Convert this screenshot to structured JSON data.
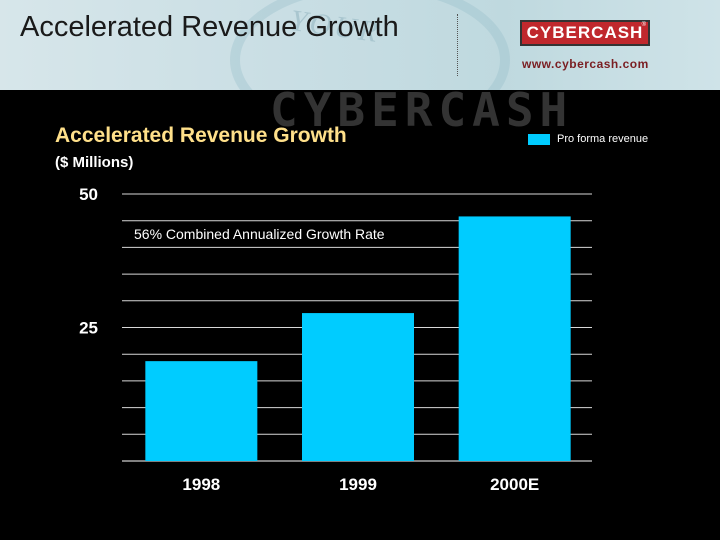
{
  "header": {
    "title": "Accelerated Revenue Growth",
    "logo_text": "CYBERCASH",
    "logo_tm": "®",
    "website": "www.cybercash.com",
    "watermark": "YOUR",
    "banner_mark": "CYBERCASH"
  },
  "colors": {
    "background": "#000000",
    "bar": "#00ccff",
    "title": "#ffe08a",
    "logo": "#c0282d"
  },
  "chart_data": {
    "type": "bar",
    "title": "Accelerated Revenue Growth",
    "subtitle": "($ Millions)",
    "categories": [
      "1998",
      "1999",
      "2000E"
    ],
    "series": [
      {
        "name": "Pro forma revenue",
        "values": [
          18.7,
          27.7,
          45.8
        ]
      }
    ],
    "ylim": [
      0,
      50
    ],
    "yticks": [
      25,
      50
    ],
    "ytick_labels": [
      "25",
      "50"
    ],
    "grid_step": 5,
    "grid": true,
    "legend_position": "top-right",
    "annotation": "56% Combined Annualized Growth Rate"
  }
}
